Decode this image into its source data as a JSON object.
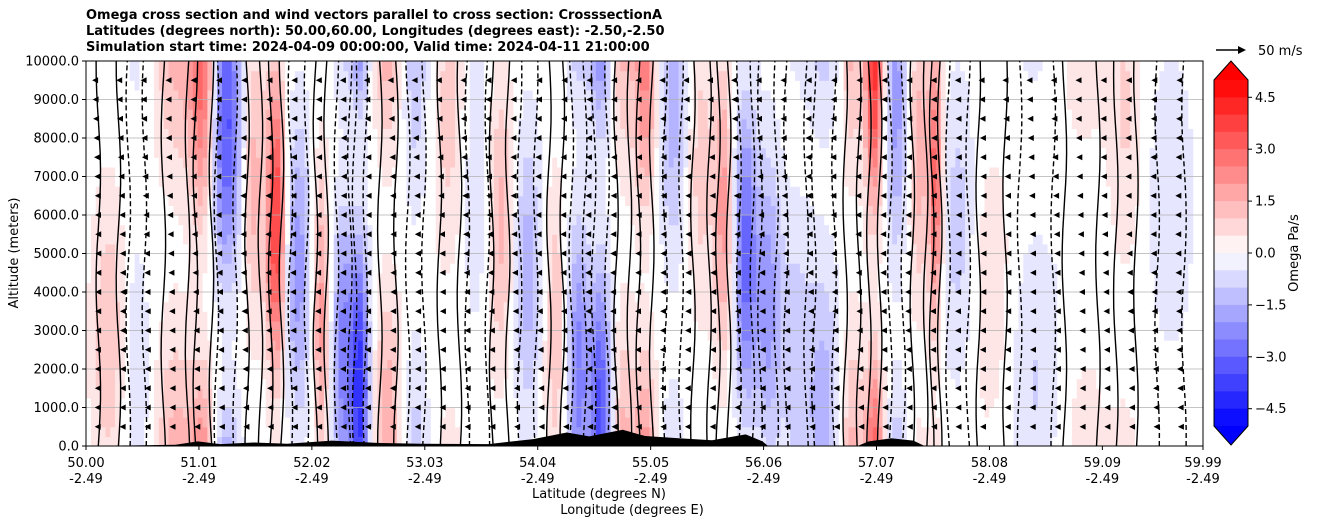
{
  "chart_data": {
    "type": "heatmap",
    "title_lines": [
      "Omega cross section and wind vectors parallel to cross section: CrosssectionA",
      "Latitudes (degrees north): 50.00,60.00, Longitudes (degrees east): -2.50,-2.50",
      "Simulation start time: 2024-04-09 00:00:00, Valid time: 2024-04-11 21:00:00"
    ],
    "ylabel": "Altitude (meters)",
    "xlabel_1": "Latitude (degrees N)",
    "xlabel_2": "Longitude (degrees E)",
    "ylim": [
      0,
      10000
    ],
    "xlim": [
      50.0,
      59.99
    ],
    "y_ticks": [
      0,
      1000,
      2000,
      3000,
      4000,
      5000,
      6000,
      7000,
      8000,
      9000,
      10000
    ],
    "y_tick_labels": [
      "0.0",
      "1000.0",
      "2000.0",
      "3000.0",
      "4000.0",
      "5000.0",
      "6000.0",
      "7000.0",
      "8000.0",
      "9000.0",
      "10000.0"
    ],
    "x_ticks": [
      50.0,
      51.01,
      52.02,
      53.03,
      54.04,
      55.05,
      56.06,
      57.07,
      58.08,
      59.09,
      59.99
    ],
    "x_tick_lat_labels": [
      "50.00",
      "51.01",
      "52.02",
      "53.03",
      "54.04",
      "55.05",
      "56.06",
      "57.07",
      "58.08",
      "59.09",
      "59.99"
    ],
    "x_tick_lon_labels": [
      "-2.49",
      "-2.49",
      "-2.49",
      "-2.49",
      "-2.49",
      "-2.49",
      "-2.49",
      "-2.49",
      "-2.49",
      "-2.49",
      "-2.49"
    ],
    "grid": true,
    "colorbar": {
      "label": "Omega Pa/s",
      "vmin": -5.0,
      "vmax": 5.0,
      "ticks": [
        -4.5,
        -3.0,
        -1.5,
        0.0,
        1.5,
        3.0,
        4.5
      ],
      "tick_labels": [
        "−4.5",
        "−3.0",
        "−1.5",
        "0.0",
        "1.5",
        "3.0",
        "4.5"
      ],
      "min_color": "#0000ff",
      "max_color": "#ff0000",
      "mid_color": "#ffffff"
    },
    "quiver_key": {
      "label": "50 m/s",
      "speed": 50
    },
    "omega_bands": [
      {
        "lat": 50.2,
        "omega": 1.2,
        "width": 0.15
      },
      {
        "lat": 50.45,
        "omega": -0.8,
        "width": 0.12
      },
      {
        "lat": 50.8,
        "omega": 1.5,
        "width": 0.18
      },
      {
        "lat": 51.05,
        "omega": 3.0,
        "width": 0.12
      },
      {
        "lat": 51.25,
        "omega": -3.5,
        "width": 0.14
      },
      {
        "lat": 51.5,
        "omega": 1.5,
        "width": 0.1
      },
      {
        "lat": 51.7,
        "omega": 4.0,
        "width": 0.08
      },
      {
        "lat": 51.9,
        "omega": -2.0,
        "width": 0.12
      },
      {
        "lat": 52.1,
        "omega": 2.0,
        "width": 0.08
      },
      {
        "lat": 52.3,
        "omega": -2.5,
        "width": 0.1
      },
      {
        "lat": 52.45,
        "omega": -4.0,
        "width": 0.08
      },
      {
        "lat": 52.7,
        "omega": 1.8,
        "width": 0.12
      },
      {
        "lat": 52.95,
        "omega": -1.2,
        "width": 0.12
      },
      {
        "lat": 53.25,
        "omega": 1.0,
        "width": 0.15
      },
      {
        "lat": 53.5,
        "omega": -0.8,
        "width": 0.15
      },
      {
        "lat": 53.7,
        "omega": 1.5,
        "width": 0.12
      },
      {
        "lat": 53.95,
        "omega": -1.5,
        "width": 0.12
      },
      {
        "lat": 54.2,
        "omega": 1.2,
        "width": 0.1
      },
      {
        "lat": 54.4,
        "omega": -2.5,
        "width": 0.1
      },
      {
        "lat": 54.6,
        "omega": -3.5,
        "width": 0.1
      },
      {
        "lat": 54.8,
        "omega": 1.5,
        "width": 0.1
      },
      {
        "lat": 55.0,
        "omega": 2.5,
        "width": 0.1
      },
      {
        "lat": 55.25,
        "omega": -1.5,
        "width": 0.12
      },
      {
        "lat": 55.5,
        "omega": 1.0,
        "width": 0.12
      },
      {
        "lat": 55.7,
        "omega": 2.0,
        "width": 0.08
      },
      {
        "lat": 55.9,
        "omega": -3.0,
        "width": 0.1
      },
      {
        "lat": 56.1,
        "omega": -2.0,
        "width": 0.12
      },
      {
        "lat": 56.35,
        "omega": -1.0,
        "width": 0.15
      },
      {
        "lat": 56.6,
        "omega": -1.5,
        "width": 0.15
      },
      {
        "lat": 56.85,
        "omega": 1.5,
        "width": 0.1
      },
      {
        "lat": 57.05,
        "omega": 4.0,
        "width": 0.08
      },
      {
        "lat": 57.25,
        "omega": -2.0,
        "width": 0.1
      },
      {
        "lat": 57.45,
        "omega": 1.5,
        "width": 0.1
      },
      {
        "lat": 57.6,
        "omega": 3.0,
        "width": 0.06
      },
      {
        "lat": 57.8,
        "omega": -1.0,
        "width": 0.15
      },
      {
        "lat": 58.1,
        "omega": 0.6,
        "width": 0.2
      },
      {
        "lat": 58.5,
        "omega": -0.8,
        "width": 0.25
      },
      {
        "lat": 58.9,
        "omega": 0.5,
        "width": 0.25
      },
      {
        "lat": 59.3,
        "omega": 0.8,
        "width": 0.15
      },
      {
        "lat": 59.7,
        "omega": -0.7,
        "width": 0.2
      }
    ],
    "wind_u_mean": -8,
    "vector_altitudes": [
      500,
      1000,
      1500,
      2000,
      2500,
      3000,
      3500,
      4000,
      4500,
      5000,
      5500,
      6000,
      6500,
      7000,
      7500,
      8000,
      8500,
      9000,
      9500
    ]
  }
}
